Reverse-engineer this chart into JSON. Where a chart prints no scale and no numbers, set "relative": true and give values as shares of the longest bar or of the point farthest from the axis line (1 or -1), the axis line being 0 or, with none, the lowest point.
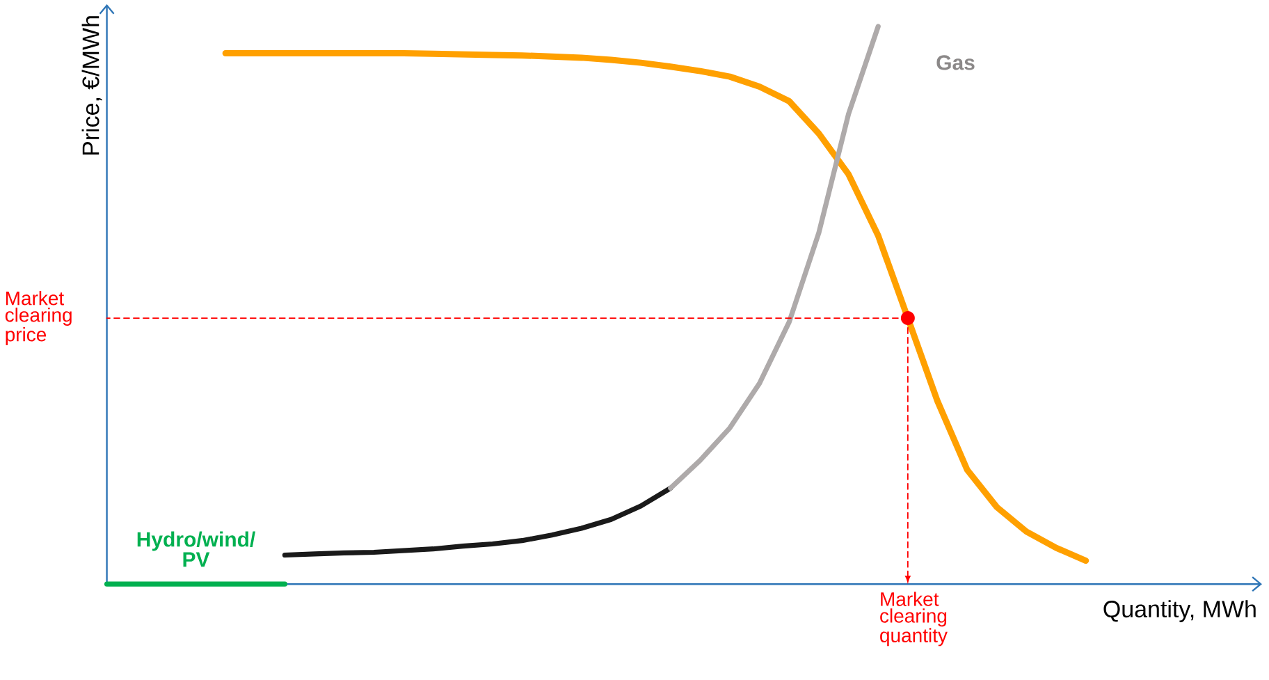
{
  "chart_data": {
    "type": "line",
    "relative": true,
    "xlabel": "Quantity, MWh",
    "ylabel": "Price, €/MWh",
    "legend": false,
    "categories": [
      null,
      null,
      null,
      null,
      null,
      null,
      null,
      null,
      null,
      null,
      null,
      null,
      null,
      null,
      null,
      null,
      null,
      null,
      null,
      null,
      null,
      null,
      null,
      null,
      null,
      null,
      null,
      null,
      null,
      null,
      null,
      null,
      null,
      null
    ],
    "series": [
      {
        "color": "#ffa000",
        "values": [
          null,
          null,
          null,
          null,
          0.952,
          0.952,
          0.952,
          0.952,
          0.952,
          0.952,
          0.952,
          0.951,
          0.95,
          0.949,
          0.948,
          0.946,
          0.944,
          0.94,
          0.935,
          0.928,
          0.92,
          0.91,
          0.892,
          0.866,
          0.808,
          0.735,
          0.625,
          0.477,
          0.328,
          0.205,
          0.138,
          0.094,
          0.065,
          0.042
        ]
      },
      {
        "name": "Hydro/wind/ PV",
        "color": "#00b050",
        "values": [
          0,
          0,
          0,
          0,
          0,
          0,
          0,
          null,
          null,
          null,
          null,
          null,
          null,
          null,
          null,
          null,
          null,
          null,
          null,
          null,
          null,
          null,
          null,
          null,
          null,
          null,
          null,
          null,
          null,
          null,
          null,
          null,
          null,
          null
        ]
      },
      {
        "color": "#1a1a1a",
        "values": [
          null,
          null,
          null,
          null,
          null,
          null,
          0.052,
          0.054,
          0.056,
          0.057,
          0.06,
          0.063,
          0.068,
          0.072,
          0.078,
          0.088,
          0.1,
          0.116,
          0.14,
          0.172,
          null,
          null,
          null,
          null,
          null,
          null,
          null,
          null,
          null,
          null,
          null,
          null,
          null,
          null
        ]
      },
      {
        "name": "Gas",
        "color": "#aeaaaa",
        "values": [
          null,
          null,
          null,
          null,
          null,
          null,
          null,
          null,
          null,
          null,
          null,
          null,
          null,
          null,
          null,
          null,
          null,
          null,
          null,
          0.172,
          0.222,
          0.28,
          0.36,
          0.47,
          0.63,
          0.843,
          1.0,
          null,
          null,
          null,
          null,
          null,
          null,
          null
        ]
      }
    ],
    "ref_lines": [
      {
        "axis": "y",
        "value": 0.477,
        "label": "Market clearing price",
        "color": "#ff0000",
        "line_style": "dashed"
      }
    ],
    "annotations": [
      "Market clearing quantity"
    ]
  }
}
